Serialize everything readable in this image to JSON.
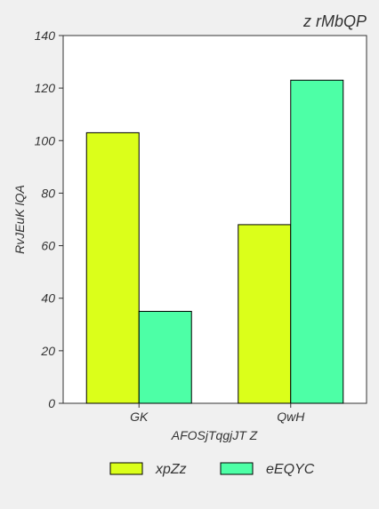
{
  "chart_data": {
    "type": "bar",
    "title": "z rMbQP",
    "xlabel": "AFOSjTqgjJT Z",
    "ylabel": "RvJEuK lQA",
    "categories": [
      "GK",
      "QwH"
    ],
    "series": [
      {
        "name": "xpZz",
        "values": [
          103,
          68
        ],
        "color": "#dbff1a"
      },
      {
        "name": "eEQYC",
        "values": [
          35,
          123
        ],
        "color": "#4dffa6"
      }
    ],
    "ylim": [
      0,
      140
    ],
    "yticks": [
      0,
      20,
      40,
      60,
      80,
      100,
      120,
      140
    ],
    "grid": false,
    "legend_position": "bottom-center"
  },
  "colors": {
    "background": "#f0f0f0",
    "plot_background": "#ffffff",
    "axis": "#333333",
    "bar_edge": "#000000"
  }
}
